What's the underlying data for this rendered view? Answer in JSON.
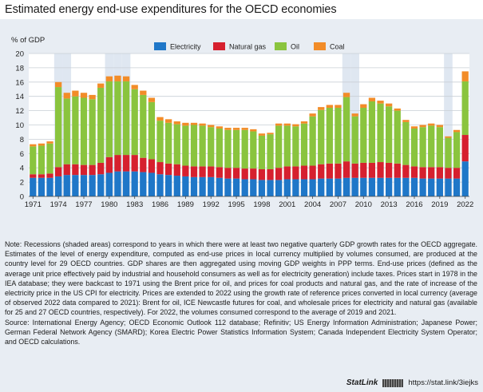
{
  "page": {
    "title": "Estimated energy end-use expenditures for the OECD economies"
  },
  "chart_data": {
    "type": "bar",
    "stacked": true,
    "ylabel": "% of GDP",
    "ylim": [
      0,
      20
    ],
    "yticks": [
      0,
      2,
      4,
      6,
      8,
      10,
      12,
      14,
      16,
      18,
      20
    ],
    "grid": true,
    "legend_position": "top",
    "categories": [
      "1971",
      "1972",
      "1973",
      "1974",
      "1975",
      "1976",
      "1977",
      "1978",
      "1979",
      "1980",
      "1981",
      "1982",
      "1983",
      "1984",
      "1985",
      "1986",
      "1987",
      "1988",
      "1989",
      "1990",
      "1991",
      "1992",
      "1993",
      "1994",
      "1995",
      "1996",
      "1997",
      "1998",
      "1999",
      "2000",
      "2001",
      "2002",
      "2003",
      "2004",
      "2005",
      "2006",
      "2007",
      "2008",
      "2009",
      "2010",
      "2011",
      "2012",
      "2013",
      "2014",
      "2015",
      "2016",
      "2017",
      "2018",
      "2019",
      "2020",
      "2021",
      "2022"
    ],
    "xtick_labels": [
      "1971",
      "1974",
      "1977",
      "1980",
      "1983",
      "1986",
      "1989",
      "1992",
      "1995",
      "1998",
      "2001",
      "2004",
      "2007",
      "2010",
      "2013",
      "2016",
      "2019",
      "2022"
    ],
    "recessions": [
      "1974",
      "1975",
      "1980",
      "1981",
      "1982",
      "2008",
      "2009",
      "2020"
    ],
    "series": [
      {
        "name": "Electricity",
        "color": "#1f77c8",
        "values": [
          2.6,
          2.6,
          2.6,
          2.8,
          3.0,
          3.0,
          3.0,
          3.0,
          3.1,
          3.3,
          3.5,
          3.5,
          3.5,
          3.4,
          3.3,
          3.1,
          3.0,
          2.9,
          2.8,
          2.7,
          2.7,
          2.7,
          2.6,
          2.5,
          2.5,
          2.4,
          2.4,
          2.3,
          2.3,
          2.3,
          2.4,
          2.4,
          2.4,
          2.4,
          2.5,
          2.5,
          2.5,
          2.6,
          2.6,
          2.6,
          2.6,
          2.6,
          2.6,
          2.6,
          2.6,
          2.6,
          2.5,
          2.5,
          2.5,
          2.5,
          2.5,
          4.9
        ]
      },
      {
        "name": "Natural gas",
        "color": "#d6202e",
        "values": [
          0.5,
          0.5,
          0.6,
          1.3,
          1.5,
          1.5,
          1.4,
          1.4,
          1.6,
          2.2,
          2.3,
          2.3,
          2.3,
          2.0,
          1.9,
          1.7,
          1.6,
          1.6,
          1.5,
          1.5,
          1.5,
          1.5,
          1.5,
          1.5,
          1.5,
          1.5,
          1.5,
          1.5,
          1.5,
          1.7,
          1.8,
          1.8,
          1.9,
          1.9,
          2.0,
          2.1,
          2.1,
          2.3,
          2.0,
          2.1,
          2.1,
          2.2,
          2.1,
          2.0,
          1.8,
          1.6,
          1.6,
          1.6,
          1.6,
          1.5,
          1.5,
          3.7
        ]
      },
      {
        "name": "Oil",
        "color": "#8ac43e",
        "values": [
          3.9,
          4.0,
          4.2,
          11.2,
          9.2,
          9.5,
          9.4,
          9.2,
          10.5,
          10.6,
          10.3,
          10.3,
          9.2,
          8.8,
          8.0,
          5.8,
          5.7,
          5.6,
          5.6,
          5.8,
          5.7,
          5.5,
          5.4,
          5.3,
          5.3,
          5.4,
          5.2,
          4.7,
          4.9,
          5.9,
          5.7,
          5.6,
          5.9,
          6.9,
          7.6,
          7.8,
          7.8,
          9.0,
          6.6,
          7.7,
          8.6,
          8.2,
          7.9,
          7.4,
          6.0,
          5.3,
          5.6,
          5.8,
          5.6,
          4.2,
          5.0,
          7.5
        ]
      },
      {
        "name": "Coal",
        "color": "#f28c28",
        "values": [
          0.3,
          0.3,
          0.3,
          0.7,
          0.8,
          0.8,
          0.7,
          0.6,
          0.6,
          0.7,
          0.8,
          0.7,
          0.6,
          0.6,
          0.6,
          0.5,
          0.5,
          0.4,
          0.4,
          0.3,
          0.3,
          0.3,
          0.3,
          0.3,
          0.3,
          0.3,
          0.3,
          0.3,
          0.2,
          0.3,
          0.3,
          0.3,
          0.3,
          0.4,
          0.4,
          0.4,
          0.4,
          0.6,
          0.4,
          0.5,
          0.5,
          0.4,
          0.4,
          0.3,
          0.3,
          0.3,
          0.3,
          0.3,
          0.3,
          0.2,
          0.3,
          1.4
        ]
      }
    ]
  },
  "note": {
    "text": "Note: Recessions (shaded areas) correspond to years in which there were at least two negative quarterly GDP growth rates for the OECD aggregate. Estimates of the level of energy expenditure, computed as end-use prices in local currency multiplied by volumes consumed, are produced at the country level for 29 OECD countries. GDP shares are then aggregated using moving GDP weights in PPP terms. End-use prices (defined as the average unit price effectively paid by industrial and household consumers as well as for electricity generation) include taxes. Prices start in 1978 in the IEA database; they were backcast to 1971 using the Brent price for oil, and prices for coal products and natural gas, and the rate of increase of the electricity price in the US CPI for electricity. Prices are extended to 2022 using the growth rate of reference prices converted in local currency (average of observed 2022 data compared to 2021): Brent for oil, ICE Newcastle futures for coal, and wholesale prices for electricity and natural gas (available for 25 and 27 OECD countries, respectively). For 2022, the volumes consumed correspond to the average of 2019 and 2021.",
    "source": "Source: International Energy Agency; OECD Economic Outlook 112 database; Refinitiv; US Energy Information Administration; Japanese Power; German Federal Network Agency (SMARD); Korea Electric Power Statistics Information System; Canada Independent Electricity System Operator; and OECD calculations."
  },
  "statlink": {
    "brand": "StatLink",
    "url": "https://stat.link/3iejks"
  }
}
